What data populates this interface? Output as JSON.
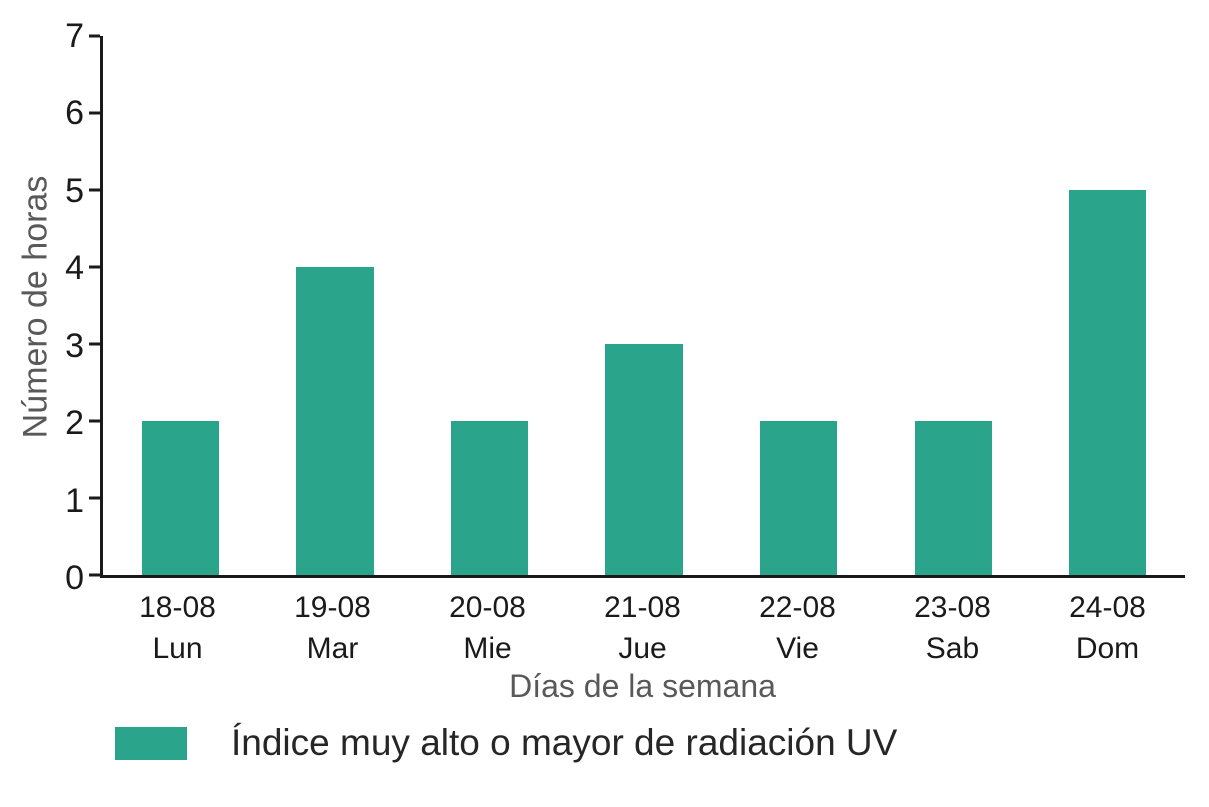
{
  "chart_data": {
    "type": "bar",
    "title": "",
    "xlabel": "Días de la semana",
    "ylabel": "Número de horas",
    "categories": [
      {
        "date": "18-08",
        "day": "Lun"
      },
      {
        "date": "19-08",
        "day": "Mar"
      },
      {
        "date": "20-08",
        "day": "Mie"
      },
      {
        "date": "21-08",
        "day": "Jue"
      },
      {
        "date": "22-08",
        "day": "Vie"
      },
      {
        "date": "23-08",
        "day": "Sab"
      },
      {
        "date": "24-08",
        "day": "Dom"
      }
    ],
    "values": [
      2,
      4,
      2,
      3,
      2,
      2,
      5
    ],
    "ylim": [
      0,
      7
    ],
    "ytick_step": 1,
    "grid": false,
    "bar_color": "#2aa58c",
    "legend": {
      "position": "bottom-left",
      "entries": [
        {
          "label": "Índice muy alto o mayor de radiación UV",
          "color": "#2aa58c"
        }
      ]
    }
  },
  "colors": {
    "bar": "#2aa58c",
    "axis": "#1a1a1a",
    "axis_label": "#595959",
    "tick_label": "#1a1a1a",
    "legend_text": "#262626",
    "background": "#ffffff"
  }
}
